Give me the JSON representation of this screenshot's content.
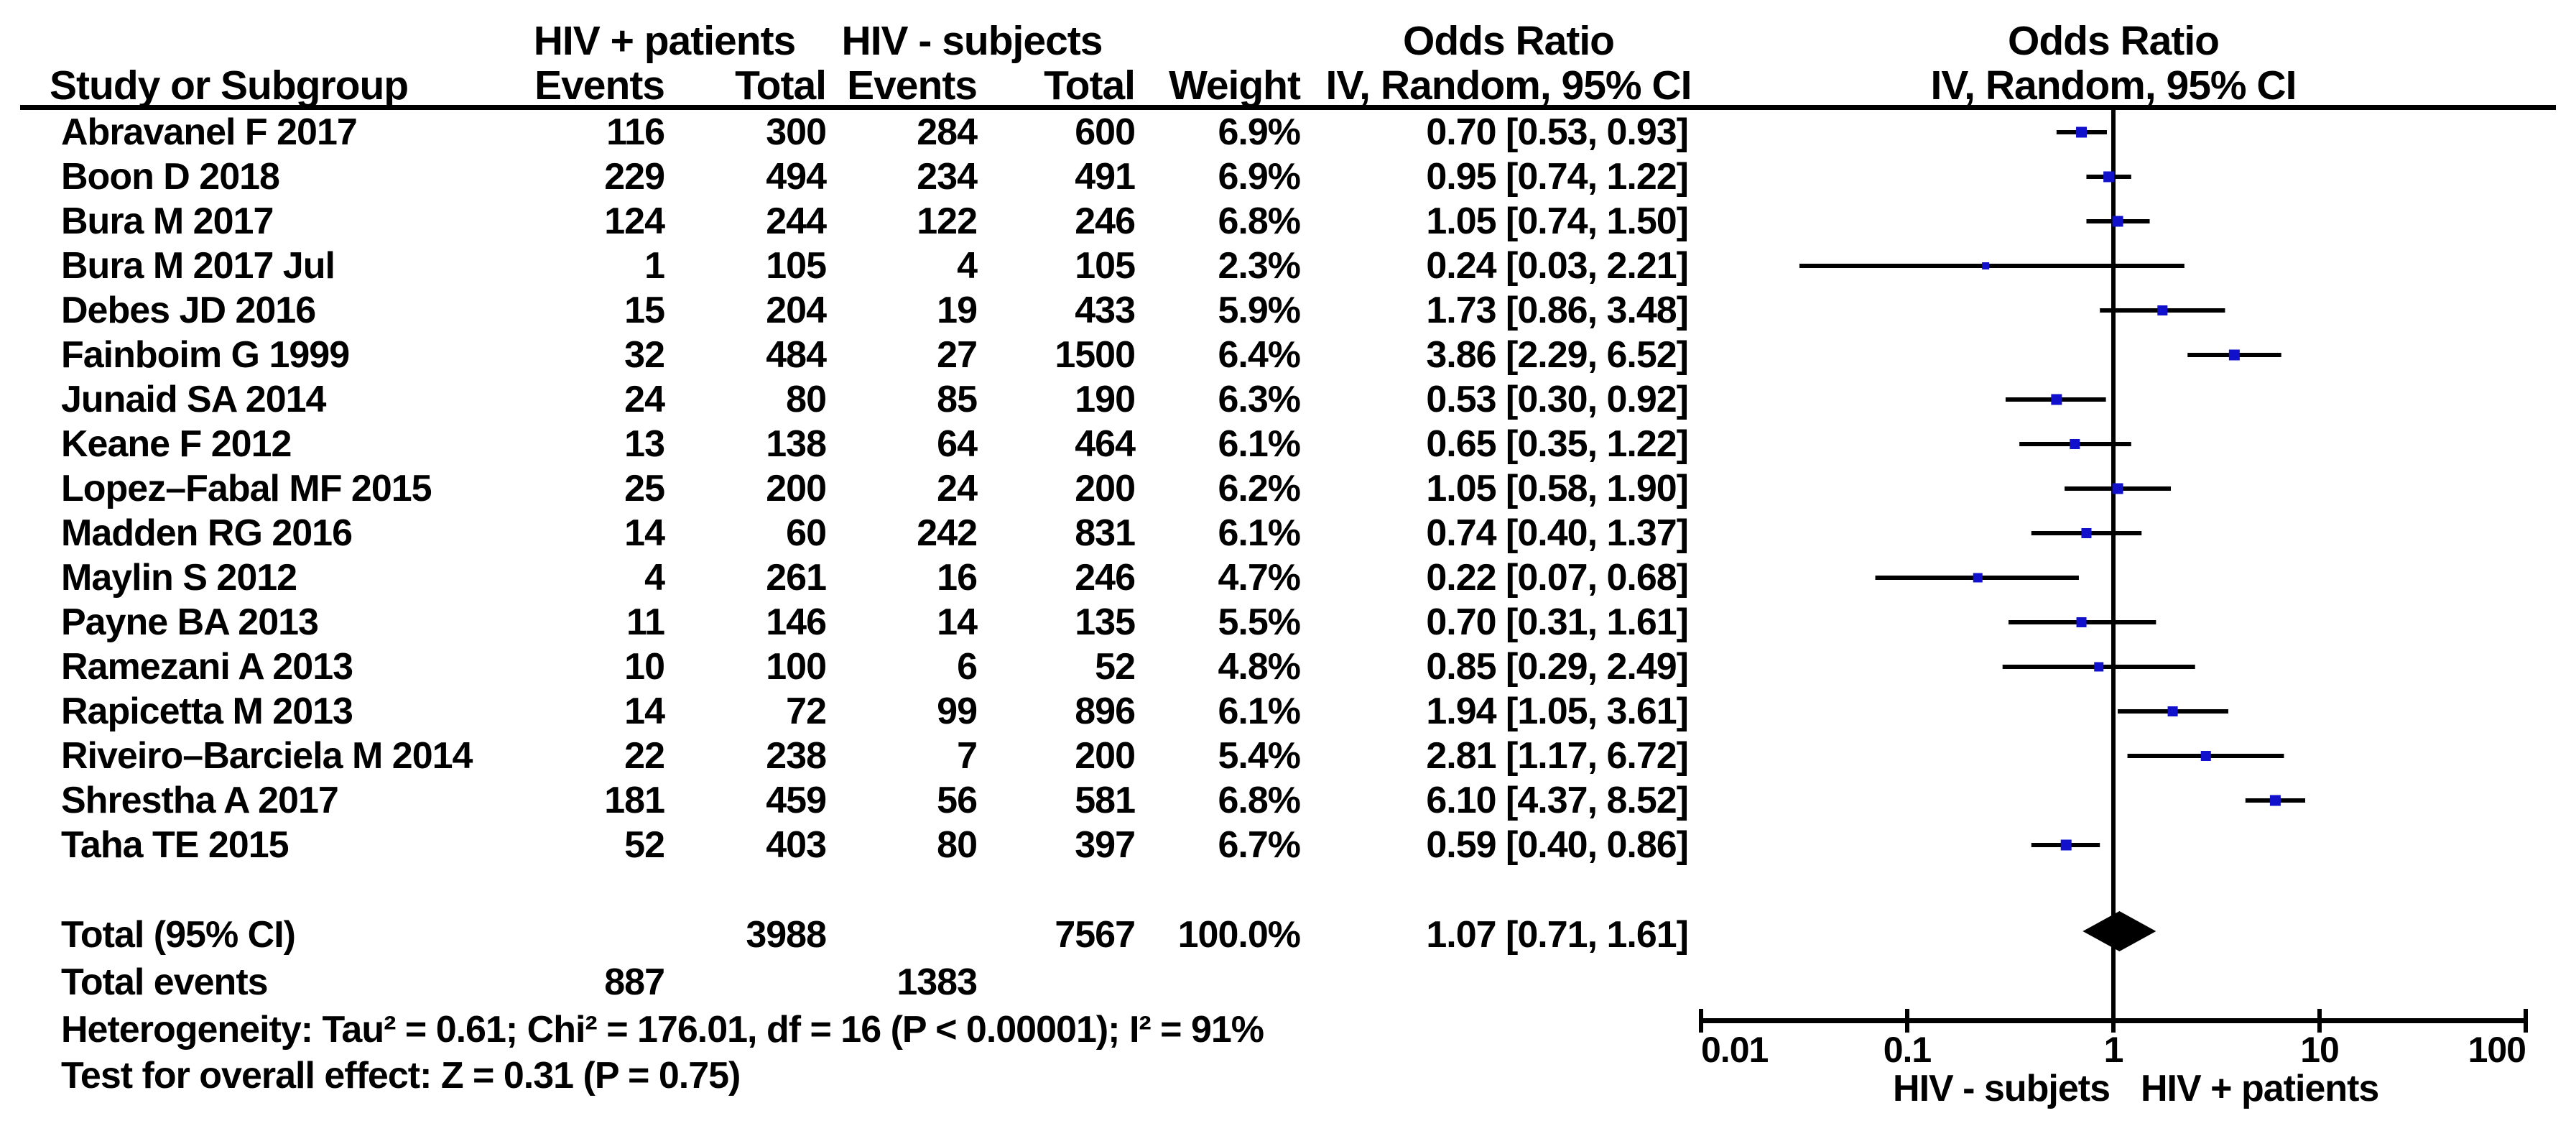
{
  "header": {
    "group1": "HIV + patients",
    "group2": "HIV - subjects",
    "or_col_title": "Odds Ratio",
    "or_plot_title": "Odds Ratio",
    "study_col": "Study or Subgroup",
    "events_col": "Events",
    "total_col": "Total",
    "weight_col": "Weight",
    "method_col": "IV, Random, 95% CI",
    "method_plot_col": "IV, Random, 95% CI"
  },
  "footer": {
    "total_label": "Total (95% CI)",
    "total_events_label": "Total events",
    "heterogeneity": "Heterogeneity: Tau² = 0.61; Chi² = 176.01, df = 16 (P < 0.00001); I² = 91%",
    "overall_effect": "Test for overall effect: Z = 0.31 (P = 0.75)"
  },
  "colors": {
    "marker_blue": "#1111cc",
    "line_black": "#000000"
  },
  "chart_data": {
    "type": "forest",
    "effect_measure": "Odds Ratio",
    "model": "IV, Random, 95% CI",
    "x_scale": "log10",
    "x_ticks": [
      0.01,
      0.1,
      1,
      10,
      100
    ],
    "xlim": [
      0.01,
      100
    ],
    "axis_caption_left": "HIV - subjets",
    "axis_caption_right": "HIV + patients",
    "studies": [
      {
        "name": "Abravanel F 2017",
        "events1": 116,
        "total1": 300,
        "events2": 284,
        "total2": 600,
        "weight": 6.9,
        "or": 0.7,
        "ci_low": 0.53,
        "ci_high": 0.93
      },
      {
        "name": "Boon D 2018",
        "events1": 229,
        "total1": 494,
        "events2": 234,
        "total2": 491,
        "weight": 6.9,
        "or": 0.95,
        "ci_low": 0.74,
        "ci_high": 1.22
      },
      {
        "name": "Bura M 2017",
        "events1": 124,
        "total1": 244,
        "events2": 122,
        "total2": 246,
        "weight": 6.8,
        "or": 1.05,
        "ci_low": 0.74,
        "ci_high": 1.5
      },
      {
        "name": "Bura M 2017 Jul",
        "events1": 1,
        "total1": 105,
        "events2": 4,
        "total2": 105,
        "weight": 2.3,
        "or": 0.24,
        "ci_low": 0.03,
        "ci_high": 2.21
      },
      {
        "name": "Debes JD 2016",
        "events1": 15,
        "total1": 204,
        "events2": 19,
        "total2": 433,
        "weight": 5.9,
        "or": 1.73,
        "ci_low": 0.86,
        "ci_high": 3.48
      },
      {
        "name": "Fainboim G 1999",
        "events1": 32,
        "total1": 484,
        "events2": 27,
        "total2": 1500,
        "weight": 6.4,
        "or": 3.86,
        "ci_low": 2.29,
        "ci_high": 6.52
      },
      {
        "name": "Junaid SA 2014",
        "events1": 24,
        "total1": 80,
        "events2": 85,
        "total2": 190,
        "weight": 6.3,
        "or": 0.53,
        "ci_low": 0.3,
        "ci_high": 0.92
      },
      {
        "name": "Keane F 2012",
        "events1": 13,
        "total1": 138,
        "events2": 64,
        "total2": 464,
        "weight": 6.1,
        "or": 0.65,
        "ci_low": 0.35,
        "ci_high": 1.22
      },
      {
        "name": "Lopez–Fabal MF 2015",
        "events1": 25,
        "total1": 200,
        "events2": 24,
        "total2": 200,
        "weight": 6.2,
        "or": 1.05,
        "ci_low": 0.58,
        "ci_high": 1.9
      },
      {
        "name": "Madden RG 2016",
        "events1": 14,
        "total1": 60,
        "events2": 242,
        "total2": 831,
        "weight": 6.1,
        "or": 0.74,
        "ci_low": 0.4,
        "ci_high": 1.37
      },
      {
        "name": "Maylin S 2012",
        "events1": 4,
        "total1": 261,
        "events2": 16,
        "total2": 246,
        "weight": 4.7,
        "or": 0.22,
        "ci_low": 0.07,
        "ci_high": 0.68
      },
      {
        "name": "Payne BA 2013",
        "events1": 11,
        "total1": 146,
        "events2": 14,
        "total2": 135,
        "weight": 5.5,
        "or": 0.7,
        "ci_low": 0.31,
        "ci_high": 1.61
      },
      {
        "name": "Ramezani A 2013",
        "events1": 10,
        "total1": 100,
        "events2": 6,
        "total2": 52,
        "weight": 4.8,
        "or": 0.85,
        "ci_low": 0.29,
        "ci_high": 2.49
      },
      {
        "name": "Rapicetta M 2013",
        "events1": 14,
        "total1": 72,
        "events2": 99,
        "total2": 896,
        "weight": 6.1,
        "or": 1.94,
        "ci_low": 1.05,
        "ci_high": 3.61
      },
      {
        "name": "Riveiro–Barciela M 2014",
        "events1": 22,
        "total1": 238,
        "events2": 7,
        "total2": 200,
        "weight": 5.4,
        "or": 2.81,
        "ci_low": 1.17,
        "ci_high": 6.72
      },
      {
        "name": "Shrestha A 2017",
        "events1": 181,
        "total1": 459,
        "events2": 56,
        "total2": 581,
        "weight": 6.8,
        "or": 6.1,
        "ci_low": 4.37,
        "ci_high": 8.52
      },
      {
        "name": "Taha TE 2015",
        "events1": 52,
        "total1": 403,
        "events2": 80,
        "total2": 397,
        "weight": 6.7,
        "or": 0.59,
        "ci_low": 0.4,
        "ci_high": 0.86
      }
    ],
    "total": {
      "total1": 3988,
      "total2": 7567,
      "weight": 100.0,
      "or": 1.07,
      "ci_low": 0.71,
      "ci_high": 1.61
    },
    "total_events": {
      "events1": 887,
      "events2": 1383
    },
    "heterogeneity": "Heterogeneity: Tau² = 0.61; Chi² = 176.01, df = 16 (P < 0.00001); I² = 91%",
    "overall_effect_test": "Test for overall effect: Z = 0.31 (P = 0.75)"
  }
}
